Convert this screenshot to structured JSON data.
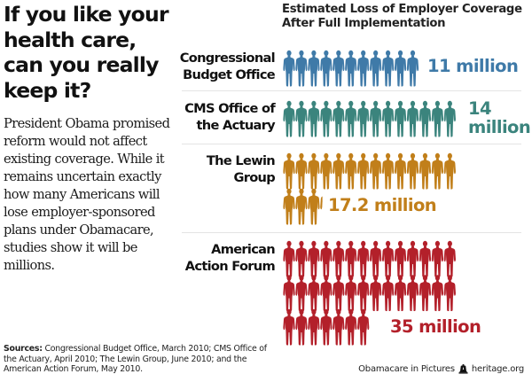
{
  "headline": [
    "If you like your",
    "health care,",
    "can you really",
    "keep it?"
  ],
  "intro": "President Obama promised reform would not affect existing coverage. While it remains uncertain exactly how many Americans will lose employer-sponsored plans under Obamacare, studies show it will be millions.",
  "chart_data": {
    "type": "pictogram",
    "title": "Estimated Loss of Employer Coverage After Full Implementation",
    "title_lines": [
      "Estimated Loss of Employer Coverage",
      "After Full Implementation"
    ],
    "unit": "1 figure = 1 million people",
    "per_row": 14,
    "series": [
      {
        "name": "Congressional Budget Office",
        "name_lines": [
          "Congressional",
          "Budget Office"
        ],
        "value": 11,
        "value_label": "11 million",
        "value_label_lines": [
          "11 million"
        ],
        "color": "#3f7aa8"
      },
      {
        "name": "CMS Office of the Actuary",
        "name_lines": [
          "CMS Office of",
          "the Actuary"
        ],
        "value": 14,
        "value_label": "14 million",
        "value_label_lines": [
          "14",
          "million"
        ],
        "color": "#3b847d"
      },
      {
        "name": "The Lewin Group",
        "name_lines": [
          "The Lewin",
          "Group"
        ],
        "value": 17.2,
        "value_label": "17.2 million",
        "value_label_lines": [
          "17.2 million"
        ],
        "color": "#c17f1a"
      },
      {
        "name": "American Action Forum",
        "name_lines": [
          "American",
          "Action Forum"
        ],
        "value": 35,
        "value_label": "35 million",
        "value_label_lines": [
          "35 million"
        ],
        "color": "#b3202a"
      }
    ]
  },
  "sources": {
    "label": "Sources:",
    "text": " Congressional Budget Office, March 2010; CMS Office of the Actuary, April 2010; The Lewin Group, June 2010; and the American Action Forum, May 2010."
  },
  "footer": {
    "series_name": "Obamacare in Pictures",
    "logo_icon": "liberty-bell-icon",
    "site": "heritage.org"
  }
}
